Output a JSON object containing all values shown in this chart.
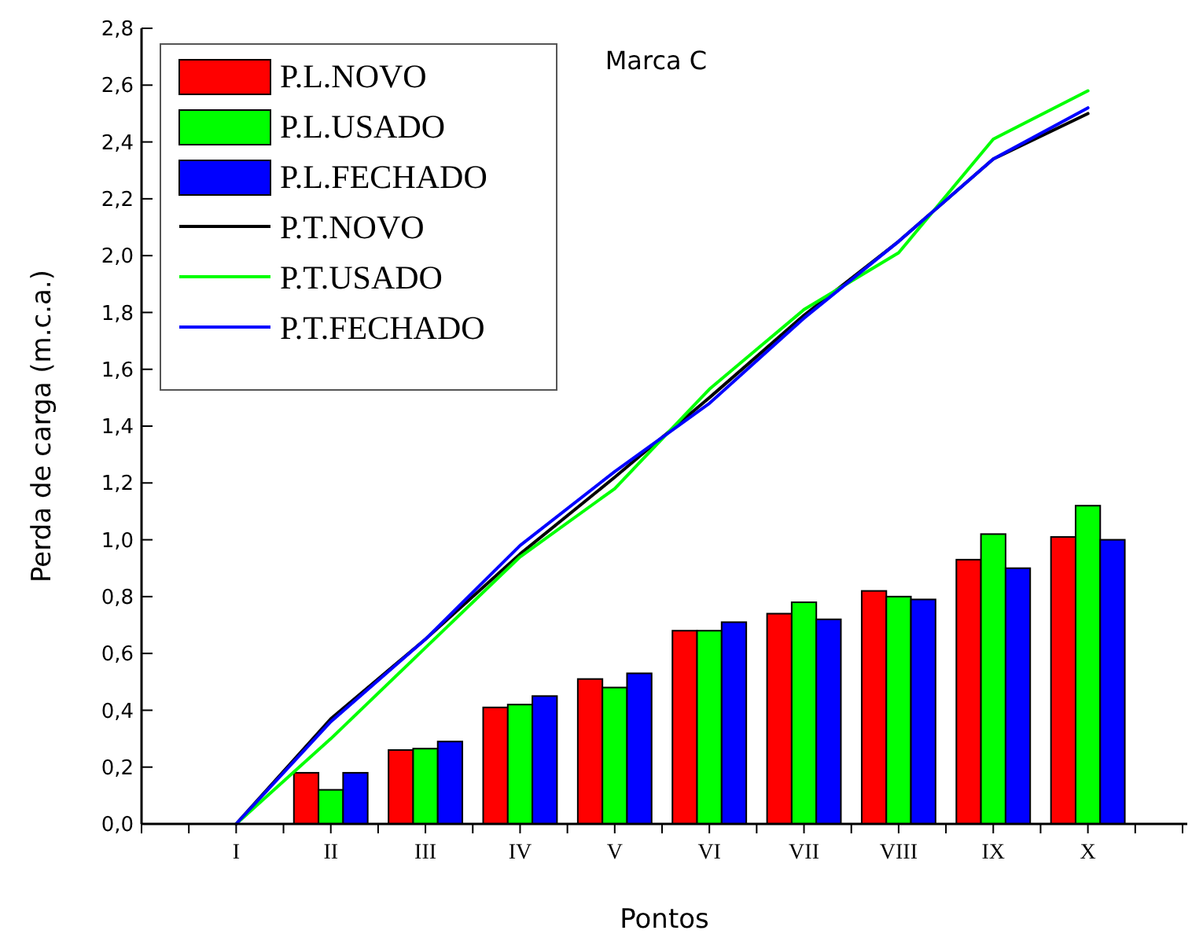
{
  "chart_data": {
    "type": "bar",
    "title": "Marca C",
    "xlabel": "Pontos",
    "ylabel": "Perda de carga (m.c.a.)",
    "categories": [
      "I",
      "II",
      "III",
      "IV",
      "V",
      "VI",
      "VII",
      "VIII",
      "IX",
      "X"
    ],
    "series": [
      {
        "name": "P.L.NOVO",
        "color": "#ff0000",
        "values": [
          null,
          0.18,
          0.26,
          0.41,
          0.51,
          0.68,
          0.74,
          0.82,
          0.93,
          1.01
        ]
      },
      {
        "name": "P.L.USADO",
        "color": "#00ff00",
        "values": [
          null,
          0.12,
          0.265,
          0.42,
          0.48,
          0.68,
          0.78,
          0.8,
          1.02,
          1.12
        ]
      },
      {
        "name": "P.L.FECHADO",
        "color": "#0000ff",
        "values": [
          null,
          0.18,
          0.29,
          0.45,
          0.53,
          0.71,
          0.72,
          0.79,
          0.9,
          1.0
        ]
      },
      {
        "name": "P.T.NOVO",
        "type": "line",
        "color": "#000000",
        "values": [
          0,
          0.37,
          0.65,
          0.95,
          1.22,
          1.5,
          1.79,
          2.05,
          2.34,
          2.5
        ]
      },
      {
        "name": "P.T.USADO",
        "type": "line",
        "color": "#00ff00",
        "values": [
          0,
          0.3,
          0.62,
          0.94,
          1.18,
          1.53,
          1.81,
          2.01,
          2.41,
          2.58
        ]
      },
      {
        "name": "P.T.FECHADO",
        "type": "line",
        "color": "#0000ff",
        "values": [
          0,
          0.36,
          0.65,
          0.98,
          1.24,
          1.48,
          1.78,
          2.05,
          2.34,
          2.52
        ]
      }
    ],
    "ylim": [
      0,
      2.8
    ],
    "yticks": [
      {
        "value": 0,
        "label": "0,0"
      },
      {
        "value": 0.2,
        "label": "0,2"
      },
      {
        "value": 0.4,
        "label": "0,4"
      },
      {
        "value": 0.6,
        "label": "0,6"
      },
      {
        "value": 0.8,
        "label": "0,8"
      },
      {
        "value": 1.0,
        "label": "1,0"
      },
      {
        "value": 1.2,
        "label": "1,2"
      },
      {
        "value": 1.4,
        "label": "1,4"
      },
      {
        "value": 1.6,
        "label": "1,6"
      },
      {
        "value": 1.8,
        "label": "1,8"
      },
      {
        "value": 2.0,
        "label": "2,0"
      },
      {
        "value": 2.2,
        "label": "2,2"
      },
      {
        "value": 2.4,
        "label": "2,4"
      },
      {
        "value": 2.6,
        "label": "2,6"
      },
      {
        "value": 2.8,
        "label": "2,8"
      }
    ],
    "legend": "top left",
    "grid": false,
    "line_style": "solid",
    "marker": "none"
  }
}
